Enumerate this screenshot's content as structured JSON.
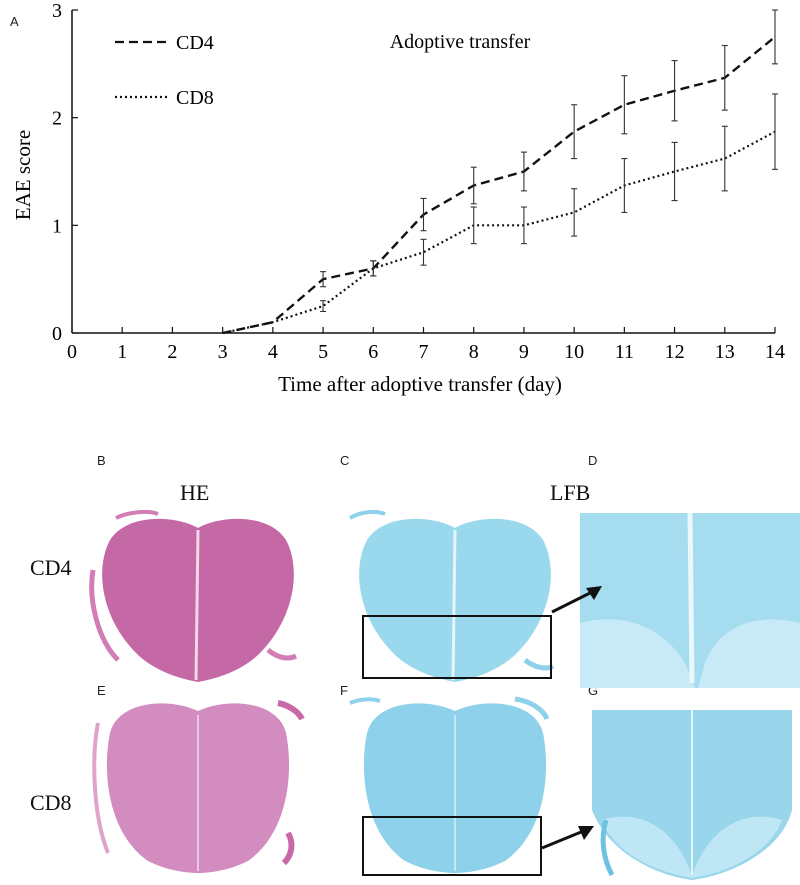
{
  "panels": {
    "A": "A",
    "B": "B",
    "C": "C",
    "D": "D",
    "E": "E",
    "F": "F",
    "G": "G"
  },
  "histology": {
    "col_titles": {
      "he": "HE",
      "lfb": "LFB"
    },
    "row_labels": {
      "cd4": "CD4",
      "cd8": "CD8"
    },
    "colors": {
      "he": "#c0609e",
      "lfb": "#8fd4ea"
    }
  },
  "chart_data": {
    "type": "line",
    "title": "Adoptive transfer",
    "xlabel": "Time after adoptive transfer (day)",
    "ylabel": "EAE score",
    "xlim": [
      0,
      14
    ],
    "ylim": [
      0,
      3
    ],
    "x_ticks": [
      "0",
      "1",
      "2",
      "3",
      "4",
      "5",
      "6",
      "7",
      "8",
      "9",
      "10",
      "11",
      "12",
      "13",
      "14"
    ],
    "y_ticks": [
      "0",
      "1",
      "2",
      "3"
    ],
    "grid": false,
    "legend_position": "upper-left",
    "x": [
      3,
      4,
      5,
      6,
      7,
      8,
      9,
      10,
      11,
      12,
      13,
      14
    ],
    "series": [
      {
        "name": "CD4",
        "style": "dashed",
        "values": [
          0,
          0.1,
          0.5,
          0.6,
          1.1,
          1.37,
          1.5,
          1.87,
          2.12,
          2.25,
          2.37,
          2.75
        ],
        "errors": [
          0,
          0,
          0.07,
          0.07,
          0.15,
          0.17,
          0.18,
          0.25,
          0.27,
          0.28,
          0.3,
          0.25
        ]
      },
      {
        "name": "CD8",
        "style": "dotted",
        "values": [
          0,
          0.1,
          0.25,
          0.6,
          0.75,
          1.0,
          1.0,
          1.12,
          1.37,
          1.5,
          1.62,
          1.87
        ],
        "errors": [
          0,
          0,
          0.05,
          0.07,
          0.12,
          0.17,
          0.17,
          0.22,
          0.25,
          0.27,
          0.3,
          0.35
        ]
      }
    ]
  }
}
